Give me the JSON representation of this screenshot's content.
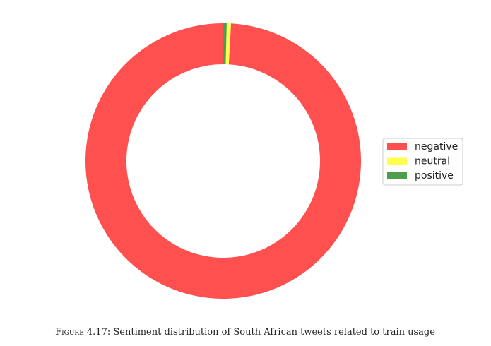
{
  "chart_data": {
    "type": "donut",
    "categories": [
      "negative",
      "neutral",
      "positive"
    ],
    "values": [
      99.1,
      0.5,
      0.4
    ],
    "colors": [
      "#ff5050",
      "#ffff50",
      "#4c9e4c"
    ],
    "start_angle": 90,
    "counterclockwise": true,
    "legend": "right"
  },
  "caption": {
    "label": "Figure 4.17:",
    "text": "Sentiment distribution of South African tweets related to train usage"
  }
}
